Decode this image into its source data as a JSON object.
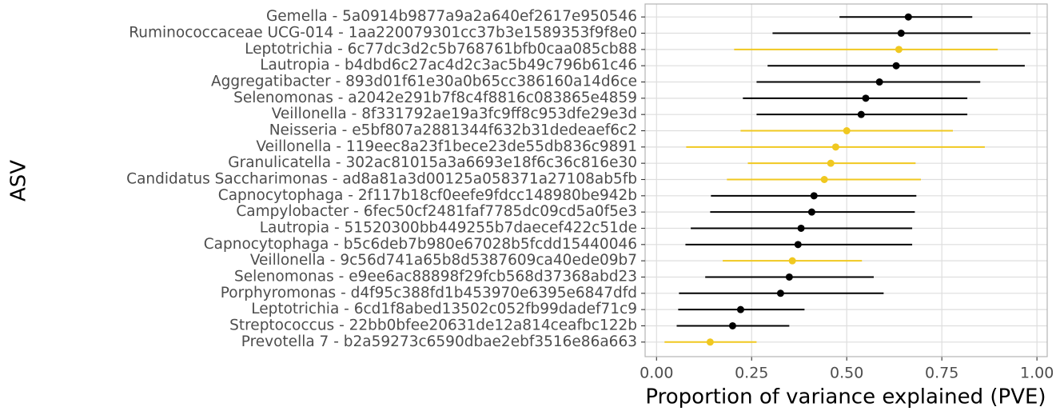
{
  "chart_data": {
    "type": "errorbar",
    "y_label": "ASV",
    "x_label": "Proportion of variance explained (PVE)",
    "categories": [
      "Gemella - 5a0914b9877a9a2a640ef2617e950546",
      "Ruminococcaceae UCG-014 - 1aa220079301cc37b3e1589353f9f8e0",
      "Leptotrichia - 6c77dc3d2c5b768761bfb0caa085cb88",
      "Lautropia - b4dbd6c27ac4d2c3ac5b49c796b61c46",
      "Aggregatibacter - 893d01f61e30a0b65cc386160a14d6ce",
      "Selenomonas - a2042e291b7f8c4f8816c083865e4859",
      "Veillonella - 8f331792ae19a3fc9ff8c953dfe29e3d",
      "Neisseria - e5bf807a2881344f632b31dedeaef6c2",
      "Veillonella - 119eec8a23f1bece23de55db836c9891",
      "Granulicatella - 302ac81015a3a6693e18f6c36c816e30",
      "Candidatus Saccharimonas - ad8a81a3d00125a058371a27108ab5fb",
      "Capnocytophaga - 2f117b18cf0eefe9fdcc148980be942b",
      "Campylobacter - 6fec50cf2481faf7785dc09cd5a0f5e3",
      "Lautropia - 51520300bb449255b7daecef422c51de",
      "Capnocytophaga - b5c6deb7b980e67028b5fcdd15440046",
      "Veillonella - 9c56d741a65b8d5387609ca40ede09b7",
      "Selenomonas - e9ee6ac88898f29fcb568d37368abd23",
      "Porphyromonas - d4f95c388fd1b453970e6395e6847dfd",
      "Leptotrichia - 6cd1f8abed13502c052fb99dadef71c9",
      "Streptococcus - 22bb0bfee20631de12a814ceafbc122b",
      "Prevotella 7 - b2a59273c6590dbae2ebf3516e86a663"
    ],
    "values": [
      0.662,
      0.643,
      0.637,
      0.63,
      0.586,
      0.55,
      0.538,
      0.5,
      0.471,
      0.458,
      0.441,
      0.414,
      0.408,
      0.38,
      0.372,
      0.357,
      0.349,
      0.326,
      0.221,
      0.2,
      0.141
    ],
    "low": [
      0.481,
      0.305,
      0.204,
      0.292,
      0.263,
      0.227,
      0.263,
      0.221,
      0.078,
      0.24,
      0.185,
      0.143,
      0.141,
      0.09,
      0.076,
      0.174,
      0.128,
      0.059,
      0.057,
      0.053,
      0.021
    ],
    "high": [
      0.83,
      0.983,
      0.897,
      0.968,
      0.851,
      0.817,
      0.817,
      0.779,
      0.863,
      0.681,
      0.695,
      0.683,
      0.679,
      0.672,
      0.672,
      0.54,
      0.571,
      0.597,
      0.389,
      0.349,
      0.263
    ],
    "colors": [
      "#000000",
      "#000000",
      "#f0c820",
      "#000000",
      "#000000",
      "#000000",
      "#000000",
      "#f0c820",
      "#f0c820",
      "#f0c820",
      "#f0c820",
      "#000000",
      "#000000",
      "#000000",
      "#000000",
      "#f0c820",
      "#000000",
      "#000000",
      "#000000",
      "#000000",
      "#f0c820"
    ],
    "xlim": [
      -0.03,
      1.027
    ],
    "xticks": [
      {
        "value": 0,
        "label": "0.00"
      },
      0.25,
      {
        "value": 0.5,
        "label": "0.50"
      },
      0.75,
      {
        "value": 1,
        "label": "1.00"
      }
    ],
    "grid": true
  }
}
